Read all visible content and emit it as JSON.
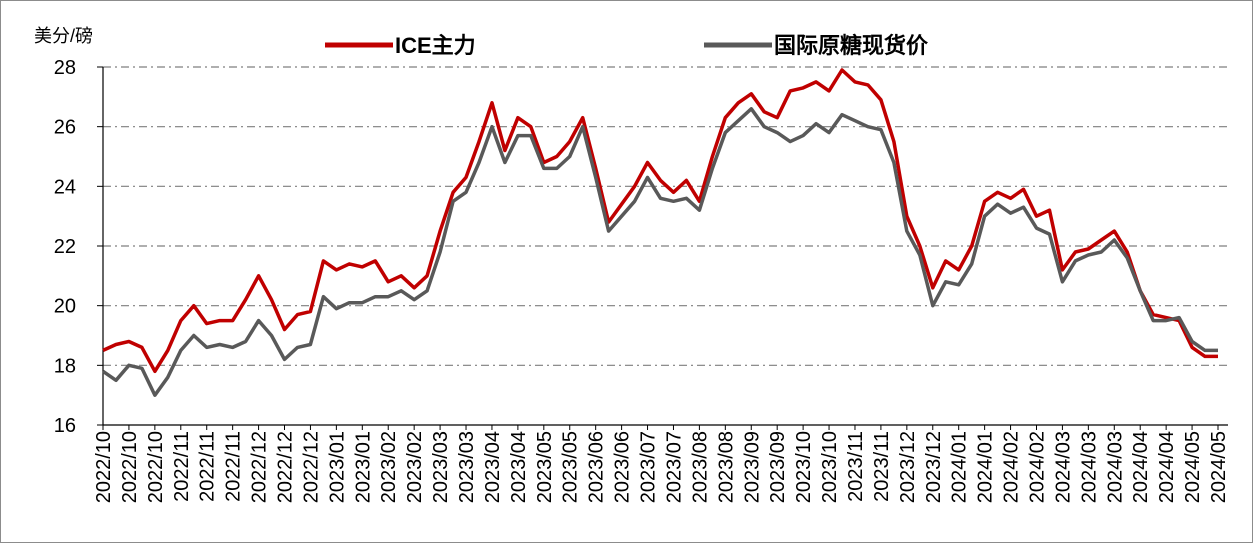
{
  "chart_data": {
    "type": "line",
    "y_label": "美分/磅",
    "categories": [
      "2022/10",
      null,
      "2022/10",
      null,
      "2022/10",
      null,
      "2022/11",
      null,
      "2022/11",
      null,
      "2022/11",
      null,
      "2022/12",
      null,
      "2022/12",
      null,
      "2022/12",
      null,
      "2023/01",
      null,
      "2023/01",
      null,
      "2023/02",
      null,
      "2023/02",
      null,
      "2023/03",
      null,
      "2023/03",
      null,
      "2023/04",
      null,
      "2023/04",
      null,
      "2023/05",
      null,
      "2023/05",
      null,
      "2023/06",
      null,
      "2023/06",
      null,
      "2023/07",
      null,
      "2023/07",
      null,
      "2023/08",
      null,
      "2023/08",
      null,
      "2023/09",
      null,
      "2023/09",
      null,
      "2023/10",
      null,
      "2023/10",
      null,
      "2023/11",
      null,
      "2023/11",
      null,
      "2023/12",
      null,
      "2023/12",
      null,
      "2024/01",
      null,
      "2024/01",
      null,
      "2024/02",
      null,
      "2024/02",
      null,
      "2024/03",
      null,
      "2024/03",
      null,
      "2024/03",
      null,
      "2024/04",
      null,
      "2024/04",
      null,
      "2024/05",
      null,
      "2024/05"
    ],
    "series": [
      {
        "name": "ICE主力",
        "color": "#c00000",
        "values": [
          18.5,
          18.7,
          18.8,
          18.6,
          17.8,
          18.5,
          19.5,
          20.0,
          19.4,
          19.5,
          19.5,
          20.2,
          21.0,
          20.2,
          19.2,
          19.7,
          19.8,
          21.5,
          21.2,
          21.4,
          21.3,
          21.5,
          20.8,
          21.0,
          20.6,
          21.0,
          22.5,
          23.8,
          24.3,
          25.5,
          26.8,
          25.2,
          26.3,
          26.0,
          24.8,
          25.0,
          25.5,
          26.3,
          24.6,
          22.8,
          23.4,
          24.0,
          24.8,
          24.2,
          23.8,
          24.2,
          23.5,
          25.0,
          26.3,
          26.8,
          27.1,
          26.5,
          26.3,
          27.2,
          27.3,
          27.5,
          27.2,
          27.9,
          27.5,
          27.4,
          26.9,
          25.5,
          23.0,
          22.0,
          20.6,
          21.5,
          21.2,
          22.0,
          23.5,
          23.8,
          23.6,
          23.9,
          23.0,
          23.2,
          21.2,
          21.8,
          21.9,
          22.2,
          22.5,
          21.8,
          20.5,
          19.7,
          19.6,
          19.5,
          18.6,
          18.3,
          18.3
        ]
      },
      {
        "name": "国际原糖现货价",
        "color": "#595959",
        "values": [
          17.8,
          17.5,
          18.0,
          17.9,
          17.0,
          17.6,
          18.5,
          19.0,
          18.6,
          18.7,
          18.6,
          18.8,
          19.5,
          19.0,
          18.2,
          18.6,
          18.7,
          20.3,
          19.9,
          20.1,
          20.1,
          20.3,
          20.3,
          20.5,
          20.2,
          20.5,
          21.8,
          23.5,
          23.8,
          24.8,
          26.0,
          24.8,
          25.7,
          25.7,
          24.6,
          24.6,
          25.0,
          26.0,
          24.3,
          22.5,
          23.0,
          23.5,
          24.3,
          23.6,
          23.5,
          23.6,
          23.2,
          24.6,
          25.8,
          26.2,
          26.6,
          26.0,
          25.8,
          25.5,
          25.7,
          26.1,
          25.8,
          26.4,
          26.2,
          26.0,
          25.9,
          24.8,
          22.5,
          21.7,
          20.0,
          20.8,
          20.7,
          21.4,
          23.0,
          23.4,
          23.1,
          23.3,
          22.6,
          22.4,
          20.8,
          21.5,
          21.7,
          21.8,
          22.2,
          21.6,
          20.5,
          19.5,
          19.5,
          19.6,
          18.8,
          18.5,
          18.5
        ]
      }
    ],
    "ylim": [
      16,
      28
    ],
    "yticks": [
      16,
      18,
      20,
      22,
      24,
      26,
      28
    ],
    "grid": true
  }
}
